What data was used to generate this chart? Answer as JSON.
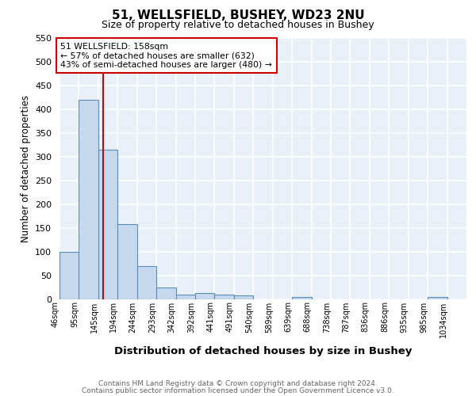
{
  "title_line1": "51, WELLSFIELD, BUSHEY, WD23 2NU",
  "title_line2": "Size of property relative to detached houses in Bushey",
  "xlabel": "Distribution of detached houses by size in Bushey",
  "ylabel_full": "Number of detached properties",
  "bin_labels": [
    "46sqm",
    "95sqm",
    "145sqm",
    "194sqm",
    "244sqm",
    "293sqm",
    "342sqm",
    "392sqm",
    "441sqm",
    "491sqm",
    "540sqm",
    "589sqm",
    "639sqm",
    "688sqm",
    "738sqm",
    "787sqm",
    "836sqm",
    "886sqm",
    "935sqm",
    "985sqm",
    "1034sqm"
  ],
  "bar_values": [
    100,
    420,
    315,
    157,
    70,
    25,
    10,
    13,
    10,
    7,
    0,
    0,
    4,
    0,
    0,
    0,
    0,
    0,
    0,
    5,
    0
  ],
  "bar_color": "#c5d8ed",
  "bar_edge_color": "#5b8db8",
  "annotation_text_line1": "51 WELLSFIELD: 158sqm",
  "annotation_text_line2": "← 57% of detached houses are smaller (632)",
  "annotation_text_line3": "43% of semi-detached houses are larger (480) →",
  "annotation_box_edge": "#cc0000",
  "red_line_color": "#cc0000",
  "red_line_x": 2.265,
  "ylim": [
    0,
    550
  ],
  "yticks": [
    0,
    50,
    100,
    150,
    200,
    250,
    300,
    350,
    400,
    450,
    500,
    550
  ],
  "bg_color": "#eaf0f8",
  "grid_color": "white",
  "footnote_line1": "Contains HM Land Registry data © Crown copyright and database right 2024.",
  "footnote_line2": "Contains public sector information licensed under the Open Government Licence v3.0."
}
